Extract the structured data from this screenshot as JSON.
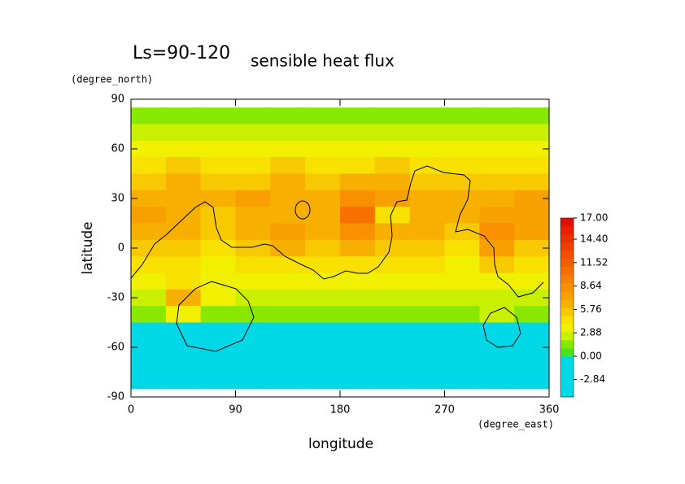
{
  "chart_data": {
    "type": "heatmap",
    "title": "Ls=90-120",
    "subtitle": "sensible heat flux",
    "y_label": "latitude",
    "y_unit": "(degree_north)",
    "x_label": "longitude",
    "x_unit": "(degree_east)",
    "xlim": [
      0,
      360
    ],
    "xticks": [
      0,
      90,
      180,
      270,
      360
    ],
    "ylim": [
      -90,
      90
    ],
    "yticks": [
      -90,
      -60,
      -30,
      0,
      30,
      60,
      90
    ],
    "x": [
      15,
      45,
      75,
      105,
      135,
      165,
      195,
      225,
      255,
      285,
      315,
      345
    ],
    "y": [
      80,
      70,
      60,
      50,
      40,
      30,
      20,
      10,
      0,
      -10,
      -20,
      -30,
      -40,
      -50,
      -60,
      -70,
      -80
    ],
    "values": [
      [
        1.5,
        1.5,
        1.5,
        1.5,
        1.5,
        1.5,
        1.5,
        1.5,
        1.5,
        1.5,
        1.5,
        1.5
      ],
      [
        2.2,
        2.5,
        2.3,
        2.2,
        2.5,
        2.4,
        2.6,
        2.3,
        2.8,
        2.5,
        2.3,
        2.2
      ],
      [
        3.4,
        3.8,
        3.5,
        3.6,
        3.4,
        3.7,
        3.5,
        3.9,
        3.4,
        3.6,
        3.3,
        3.5
      ],
      [
        4.6,
        5.0,
        4.4,
        4.8,
        5.2,
        4.5,
        4.9,
        5.6,
        4.8,
        4.3,
        4.7,
        4.5
      ],
      [
        5.5,
        6.0,
        5.2,
        5.8,
        6.3,
        5.4,
        6.0,
        6.5,
        5.6,
        5.0,
        5.8,
        5.9
      ],
      [
        6.3,
        6.8,
        6.0,
        7.0,
        6.6,
        6.2,
        8.2,
        7.2,
        6.4,
        6.0,
        6.8,
        7.0
      ],
      [
        7.5,
        6.8,
        5.8,
        6.5,
        6.0,
        6.8,
        10.5,
        4.5,
        6.8,
        6.2,
        7.2,
        7.8
      ],
      [
        6.8,
        6.0,
        5.5,
        6.2,
        7.5,
        6.5,
        8.5,
        6.8,
        6.5,
        5.8,
        8.0,
        7.0
      ],
      [
        5.5,
        5.8,
        4.8,
        5.2,
        6.0,
        5.0,
        6.2,
        5.5,
        5.8,
        4.6,
        7.2,
        5.6
      ],
      [
        4.0,
        4.2,
        3.8,
        4.5,
        4.0,
        4.6,
        4.2,
        4.0,
        4.4,
        3.6,
        5.0,
        4.3
      ],
      [
        3.2,
        4.0,
        3.6,
        3.4,
        3.5,
        3.8,
        3.5,
        3.6,
        3.2,
        3.0,
        3.8,
        3.4
      ],
      [
        2.5,
        6.5,
        3.0,
        2.6,
        2.8,
        2.4,
        2.6,
        2.5,
        2.3,
        2.6,
        2.4,
        2.5
      ],
      [
        1.5,
        3.5,
        1.8,
        1.2,
        1.4,
        1.3,
        1.5,
        1.4,
        1.2,
        1.6,
        2.0,
        1.4
      ],
      [
        -3,
        -3,
        -2.5,
        -3,
        -3,
        -3,
        -3,
        -3,
        -3,
        -3,
        -3,
        -3
      ],
      [
        -3,
        -3,
        -3,
        -3,
        -3,
        -3,
        -3,
        -3,
        -3,
        -3,
        -3,
        -3
      ],
      [
        -3,
        -3,
        -3,
        -3,
        -3,
        -3,
        -3,
        -3,
        -3,
        -3,
        -3,
        -3
      ],
      [
        -3,
        -3,
        -3,
        -3,
        -3,
        -3,
        -3,
        -3,
        -3,
        -3,
        -3,
        -3
      ]
    ],
    "colorbar": {
      "lim": [
        -5,
        17
      ],
      "colors": [
        "#00d8e8",
        "#00d8e8",
        "#00d8e8",
        "#00d8e8",
        "#00d8e8",
        "#4be31a",
        "#88e800",
        "#c8f000",
        "#f0f000",
        "#f8e000",
        "#f8c800",
        "#f8b000",
        "#f8a000",
        "#f89000",
        "#f88000",
        "#f87000",
        "#f06000",
        "#f05000",
        "#f04000",
        "#e83000",
        "#e82000",
        "#e01000"
      ],
      "ticks": [
        {
          "value": -2.84,
          "label": "-2.84"
        },
        {
          "value": 0,
          "label": "0.00"
        },
        {
          "value": 2.88,
          "label": "2.88"
        },
        {
          "value": 5.76,
          "label": "5.76"
        },
        {
          "value": 8.64,
          "label": "8.64"
        },
        {
          "value": 11.52,
          "label": "11.52"
        },
        {
          "value": 14.4,
          "label": "14.40"
        },
        {
          "value": 17,
          "label": "17.00"
        }
      ]
    }
  }
}
